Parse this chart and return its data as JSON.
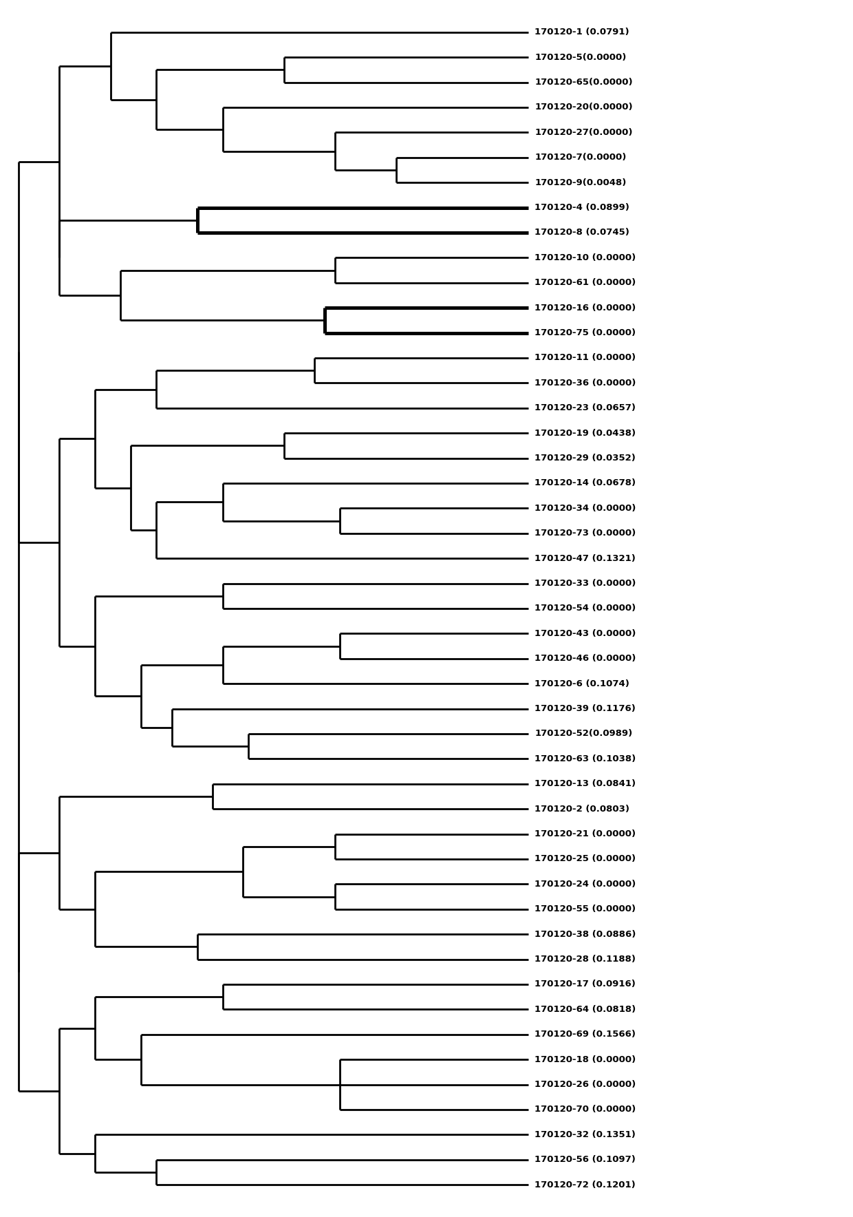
{
  "leaves": [
    {
      "name": "170120-1 (0.0791)",
      "y": 1
    },
    {
      "name": "170120-5(0.0000)",
      "y": 2
    },
    {
      "name": "170120-65(0.0000)",
      "y": 3
    },
    {
      "name": "170120-20(0.0000)",
      "y": 4
    },
    {
      "name": "170120-27(0.0000)",
      "y": 5
    },
    {
      "name": "170120-7(0.0000)",
      "y": 6
    },
    {
      "name": "170120-9(0.0048)",
      "y": 7
    },
    {
      "name": "170120-4 (0.0899)",
      "y": 8
    },
    {
      "name": "170120-8 (0.0745)",
      "y": 9
    },
    {
      "name": "170120-10 (0.0000)",
      "y": 10
    },
    {
      "name": "170120-61 (0.0000)",
      "y": 11
    },
    {
      "name": "170120-16 (0.0000)",
      "y": 12
    },
    {
      "name": "170120-75 (0.0000)",
      "y": 13
    },
    {
      "name": "170120-11 (0.0000)",
      "y": 14
    },
    {
      "name": "170120-36 (0.0000)",
      "y": 15
    },
    {
      "name": "170120-23 (0.0657)",
      "y": 16
    },
    {
      "name": "170120-19 (0.0438)",
      "y": 17
    },
    {
      "name": "170120-29 (0.0352)",
      "y": 18
    },
    {
      "name": "170120-14 (0.0678)",
      "y": 19
    },
    {
      "name": "170120-34 (0.0000)",
      "y": 20
    },
    {
      "name": "170120-73 (0.0000)",
      "y": 21
    },
    {
      "name": "170120-47 (0.1321)",
      "y": 22
    },
    {
      "name": "170120-33 (0.0000)",
      "y": 23
    },
    {
      "name": "170120-54 (0.0000)",
      "y": 24
    },
    {
      "name": "170120-43 (0.0000)",
      "y": 25
    },
    {
      "name": "170120-46 (0.0000)",
      "y": 26
    },
    {
      "name": "170120-6 (0.1074)",
      "y": 27
    },
    {
      "name": "170120-39 (0.1176)",
      "y": 28
    },
    {
      "name": "170120-52(0.0989)",
      "y": 29
    },
    {
      "name": "170120-63 (0.1038)",
      "y": 30
    },
    {
      "name": "170120-13 (0.0841)",
      "y": 31
    },
    {
      "name": "170120-2 (0.0803)",
      "y": 32
    },
    {
      "name": "170120-21 (0.0000)",
      "y": 33
    },
    {
      "name": "170120-25 (0.0000)",
      "y": 34
    },
    {
      "name": "170120-24 (0.0000)",
      "y": 35
    },
    {
      "name": "170120-55 (0.0000)",
      "y": 36
    },
    {
      "name": "170120-38 (0.0886)",
      "y": 37
    },
    {
      "name": "170120-28 (0.1188)",
      "y": 38
    },
    {
      "name": "170120-17 (0.0916)",
      "y": 39
    },
    {
      "name": "170120-64 (0.0818)",
      "y": 40
    },
    {
      "name": "170120-69 (0.1566)",
      "y": 41
    },
    {
      "name": "170120-18 (0.0000)",
      "y": 42
    },
    {
      "name": "170120-26 (0.0000)",
      "y": 43
    },
    {
      "name": "170120-70 (0.0000)",
      "y": 44
    },
    {
      "name": "170120-32 (0.1351)",
      "y": 45
    },
    {
      "name": "170120-56 (0.1097)",
      "y": 46
    },
    {
      "name": "170120-72 (0.1201)",
      "y": 47
    }
  ],
  "line_color": "#000000",
  "line_width": 2.0,
  "font_size": 9.5,
  "bg_color": "#ffffff"
}
